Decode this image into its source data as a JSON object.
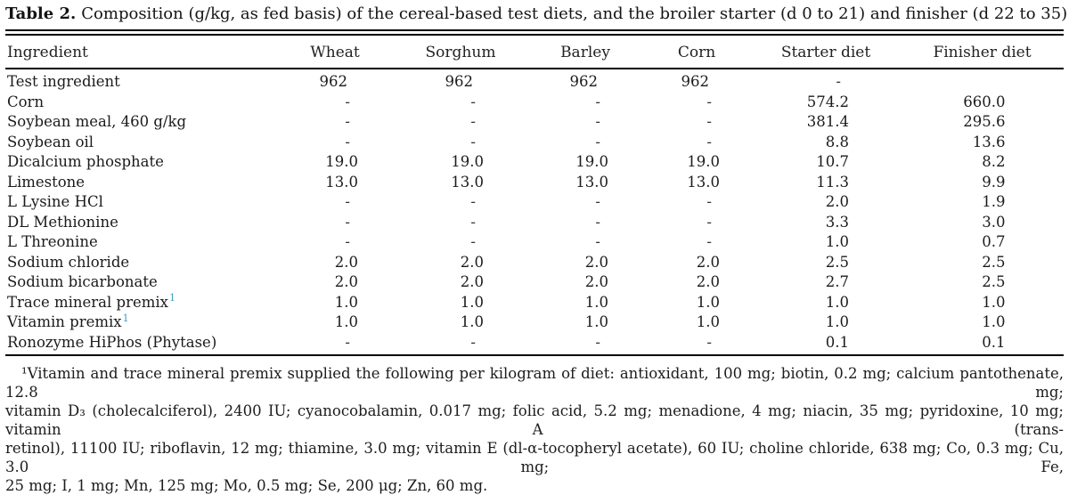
{
  "title": {
    "label": "Table 2.",
    "text": "Composition (g/kg, as fed basis) of the cereal-based test diets, and the broiler starter (d 0 to 21) and finisher (d 22 to 35) diets."
  },
  "colors": {
    "footnote_link": "#3E9FC0",
    "text": "#1b1b1b",
    "rule": "#000000"
  },
  "chart_data": {
    "type": "table",
    "title": "Composition (g/kg, as fed basis) of the cereal-based test diets, and the broiler starter (d 0 to 21) and finisher (d 22 to 35) diets."
  },
  "table": {
    "columns": [
      "Ingredient",
      "Wheat",
      "Sorghum",
      "Barley",
      "Corn",
      "Starter diet",
      "Finisher diet"
    ],
    "rows": [
      {
        "ingredient": "Test ingredient",
        "sup": "",
        "values": [
          "962",
          "962",
          "962",
          "962",
          "-",
          ""
        ]
      },
      {
        "ingredient": "Corn",
        "sup": "",
        "values": [
          "-",
          "-",
          "-",
          "-",
          "574.2",
          "660.0"
        ]
      },
      {
        "ingredient": "Soybean meal, 460 g/kg",
        "sup": "",
        "values": [
          "-",
          "-",
          "-",
          "-",
          "381.4",
          "295.6"
        ]
      },
      {
        "ingredient": "Soybean oil",
        "sup": "",
        "values": [
          "-",
          "-",
          "-",
          "-",
          "8.8",
          "13.6"
        ]
      },
      {
        "ingredient": "Dicalcium phosphate",
        "sup": "",
        "values": [
          "19.0",
          "19.0",
          "19.0",
          "19.0",
          "10.7",
          "8.2"
        ]
      },
      {
        "ingredient": "Limestone",
        "sup": "",
        "values": [
          "13.0",
          "13.0",
          "13.0",
          "13.0",
          "11.3",
          "9.9"
        ]
      },
      {
        "ingredient": "L Lysine HCl",
        "sup": "",
        "values": [
          "-",
          "-",
          "-",
          "-",
          "2.0",
          "1.9"
        ]
      },
      {
        "ingredient": "DL Methionine",
        "sup": "",
        "values": [
          "-",
          "-",
          "-",
          "-",
          "3.3",
          "3.0"
        ]
      },
      {
        "ingredient": "L Threonine",
        "sup": "",
        "values": [
          "-",
          "-",
          "-",
          "-",
          "1.0",
          "0.7"
        ]
      },
      {
        "ingredient": "Sodium chloride",
        "sup": "",
        "values": [
          "2.0",
          "2.0",
          "2.0",
          "2.0",
          "2.5",
          "2.5"
        ]
      },
      {
        "ingredient": "Sodium bicarbonate",
        "sup": "",
        "values": [
          "2.0",
          "2.0",
          "2.0",
          "2.0",
          "2.7",
          "2.5"
        ]
      },
      {
        "ingredient": "Trace mineral premix",
        "sup": "1",
        "values": [
          "1.0",
          "1.0",
          "1.0",
          "1.0",
          "1.0",
          "1.0"
        ]
      },
      {
        "ingredient": "Vitamin premix",
        "sup": "1",
        "values": [
          "1.0",
          "1.0",
          "1.0",
          "1.0",
          "1.0",
          "1.0"
        ]
      },
      {
        "ingredient": "Ronozyme HiPhos (Phytase)",
        "sup": "",
        "values": [
          "-",
          "-",
          "-",
          "-",
          "0.1",
          "0.1"
        ]
      }
    ]
  },
  "footnote": {
    "lines": [
      "¹Vitamin and trace mineral premix supplied the following per kilogram of diet: antioxidant, 100 mg; biotin, 0.2 mg; calcium pantothenate, 12.8 mg;",
      "vitamin D₃ (cholecalciferol), 2400 IU; cyanocobalamin, 0.017 mg; folic acid, 5.2 mg; menadione, 4 mg; niacin, 35 mg; pyridoxine, 10 mg; vitamin A (trans-retinol), 11100 IU; riboflavin, 12 mg; thiamine, 3.0 mg; vitamin E (dl-α-tocopheryl acetate), 60 IU; choline chloride, 638 mg; Co, 0.3 mg; Cu, 3.0 mg; Fe, 25 mg; I, 1 mg; Mn, 125 mg; Mo, 0.5 mg; Se, 200 μg; Zn, 60 mg.",
      "",
      ""
    ],
    "display_lines": [
      "¹Vitamin and trace mineral premix supplied the following per kilogram of diet: antioxidant, 100 mg; biotin, 0.2 mg; calcium pantothenate, 12.8 mg;",
      "vitamin D₃ (cholecalciferol), 2400 IU; cyanocobalamin, 0.017 mg; folic acid, 5.2 mg; menadione, 4 mg; niacin, 35 mg; pyridoxine, 10 mg; vitamin A (trans-",
      "retinol), 11100 IU; riboflavin, 12 mg; thiamine, 3.0 mg; vitamin E (dl-α-tocopheryl acetate), 60 IU; choline chloride, 638 mg; Co, 0.3 mg; Cu, 3.0 mg; Fe,",
      "25 mg; I, 1 mg; Mn, 125 mg; Mo, 0.5 mg; Se, 200 μg; Zn, 60 mg."
    ]
  }
}
